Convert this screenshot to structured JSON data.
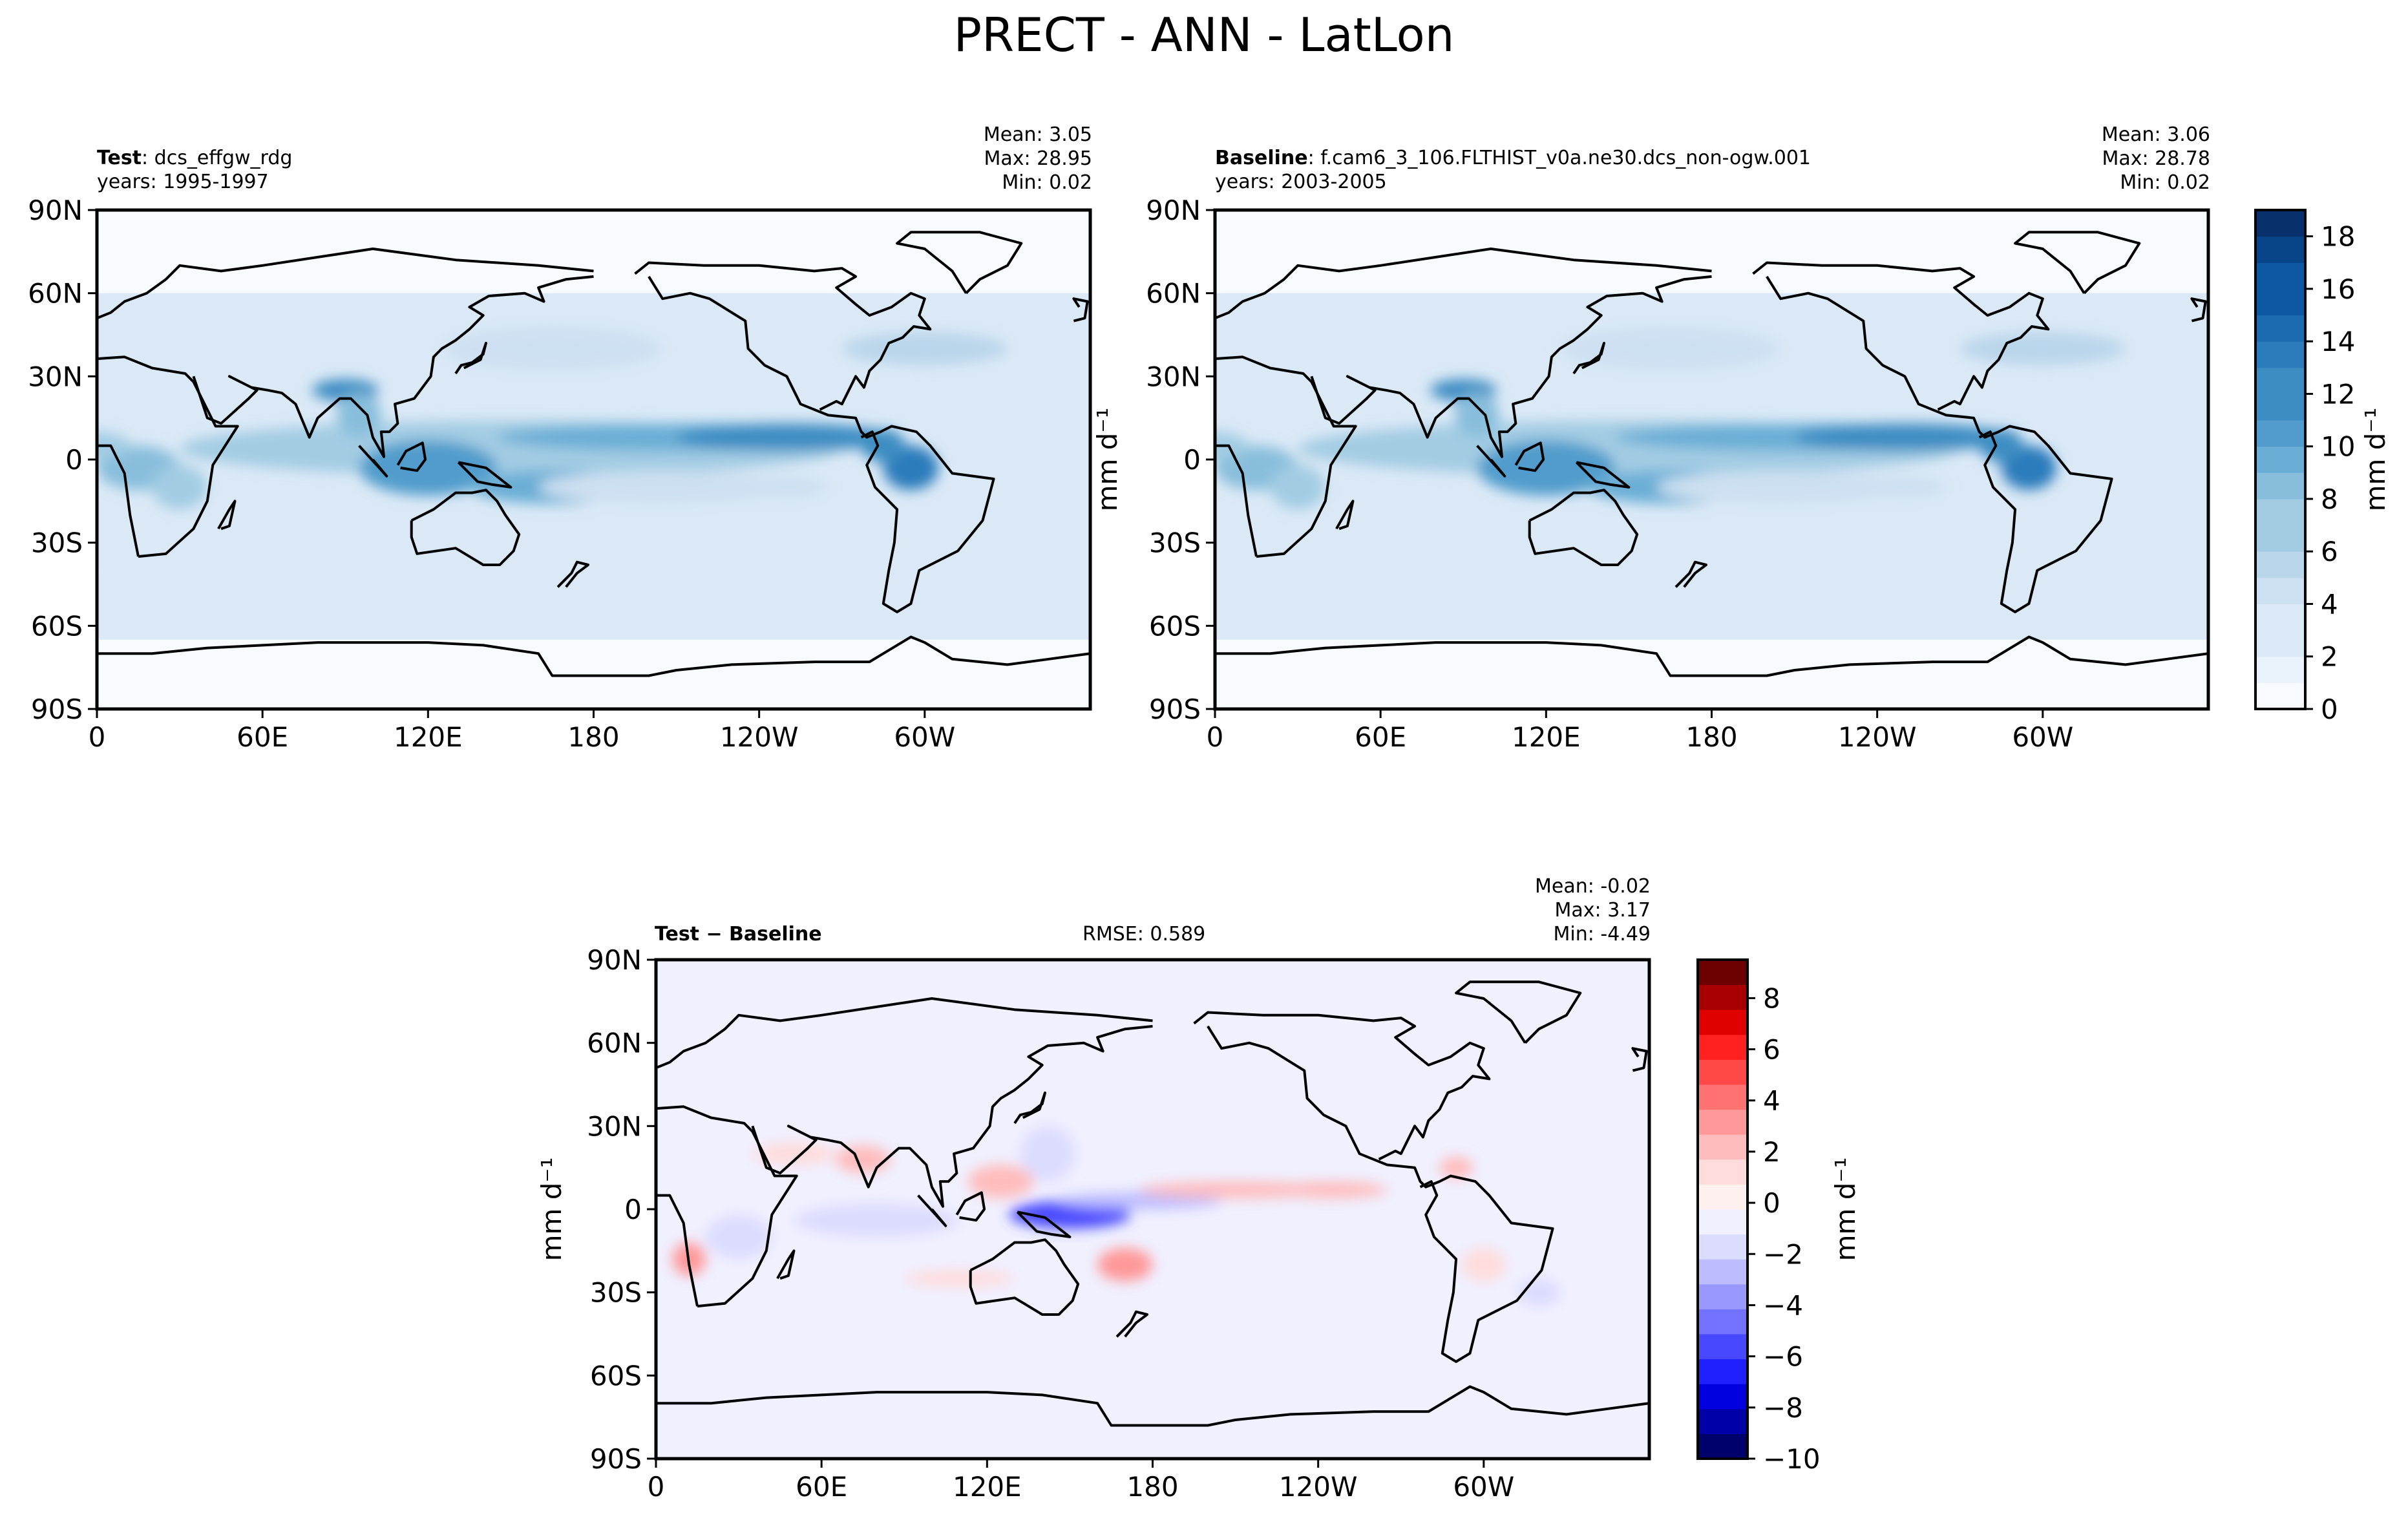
{
  "page_title": "PRECT - ANN - LatLon",
  "colors": {
    "precip_ramp": [
      "#f7fbff",
      "#eaf2fb",
      "#dbe9f6",
      "#cde0f1",
      "#bad6eb",
      "#a3cce3",
      "#88bedc",
      "#6aaed6",
      "#519ccc",
      "#3d8dc3",
      "#2c7cbb",
      "#1c6aaf",
      "#0d58a1",
      "#084488",
      "#08306b"
    ],
    "diff_ramp": [
      "#00006d",
      "#0000a8",
      "#0000e0",
      "#2020ff",
      "#4848ff",
      "#7272ff",
      "#9898ff",
      "#bcbcff",
      "#dcdcff",
      "#f0f0ff",
      "#fff0f0",
      "#ffdcdc",
      "#ffbcbc",
      "#ff9898",
      "#ff7272",
      "#ff4848",
      "#ff2020",
      "#e00000",
      "#a80000",
      "#6d0000"
    ],
    "coast": "#000000"
  },
  "chart_data": [
    {
      "type": "heatmap",
      "label_bold": "Test",
      "label_rest": ": dcs_effgw_rdg",
      "years": "years: 1995-1997",
      "stats": [
        "Mean:  3.05",
        "Max: 28.95",
        "Min:  0.02"
      ],
      "x_ticks": [
        "0",
        "60E",
        "120E",
        "180",
        "120W",
        "60W"
      ],
      "y_ticks": [
        "90N",
        "60N",
        "30N",
        "0",
        "30S",
        "60S",
        "90S"
      ],
      "lon_range": [
        0,
        360
      ],
      "lat_range": [
        -90,
        90
      ],
      "colorbar": "shared with Baseline panel"
    },
    {
      "type": "heatmap",
      "label_bold": "Baseline",
      "label_rest": ": f.cam6_3_106.FLTHIST_v0a.ne30.dcs_non-ogw.001",
      "years": "years: 2003-2005",
      "stats": [
        "Mean:  3.06",
        "Max: 28.78",
        "Min:  0.02"
      ],
      "x_ticks": [
        "0",
        "60E",
        "120E",
        "180",
        "120W",
        "60W"
      ],
      "y_ticks": [
        "90N",
        "60N",
        "30N",
        "0",
        "30S",
        "60S",
        "90S"
      ],
      "lon_range": [
        0,
        360
      ],
      "lat_range": [
        -90,
        90
      ],
      "ylabel": "mm d⁻¹",
      "colorbar": {
        "label": "mm d⁻¹",
        "ticks": [
          "0",
          "2",
          "4",
          "6",
          "8",
          "10",
          "12",
          "14",
          "16",
          "18"
        ],
        "range": [
          0,
          19
        ]
      }
    },
    {
      "type": "heatmap",
      "label": "Test − Baseline",
      "rmse": "RMSE: 0.589",
      "stats": [
        "Mean: -0.02",
        "Max:  3.17",
        "Min: -4.49"
      ],
      "x_ticks": [
        "0",
        "60E",
        "120E",
        "180",
        "120W",
        "60W"
      ],
      "y_ticks": [
        "90N",
        "60N",
        "30N",
        "0",
        "30S",
        "60S",
        "90S"
      ],
      "lon_range": [
        0,
        360
      ],
      "lat_range": [
        -90,
        90
      ],
      "ylabel": "mm d⁻¹",
      "colorbar": {
        "label": "mm d⁻¹",
        "ticks": [
          "−10",
          "−8",
          "−6",
          "−4",
          "−2",
          "0",
          "2",
          "4",
          "6",
          "8"
        ],
        "range": [
          -10,
          9.5
        ]
      }
    }
  ]
}
